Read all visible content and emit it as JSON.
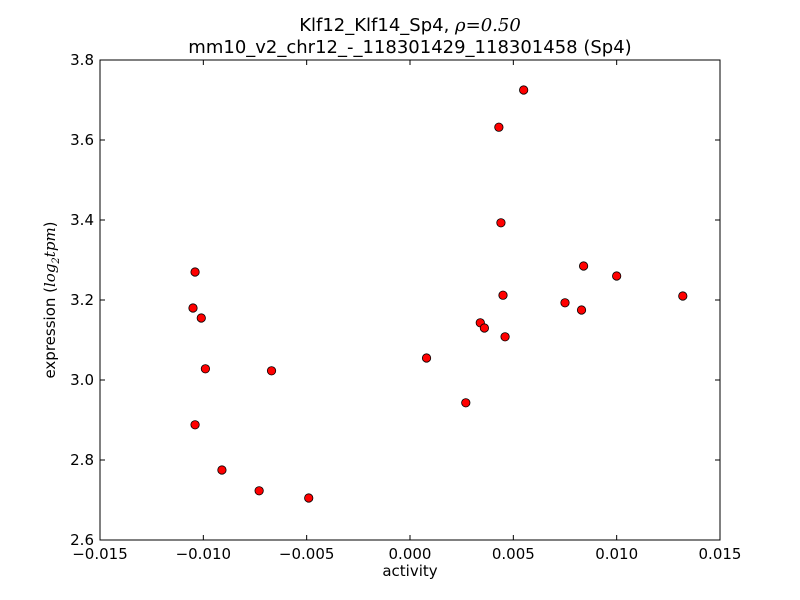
{
  "chart_data": {
    "type": "scatter",
    "title_line1_prefix": "Klf12_Klf14_Sp4, ",
    "title_line1_rho": "ρ",
    "title_line1_value": "=0.50",
    "title_line2": "mm10_v2_chr12_-_118301429_118301458 (Sp4)",
    "xlabel": "activity",
    "ylabel_prefix": "expression (",
    "ylabel_math": "log",
    "ylabel_sub": "2",
    "ylabel_math2": "tpm",
    "ylabel_suffix": ")",
    "xlim": [
      -0.015,
      0.015
    ],
    "ylim": [
      2.6,
      3.8
    ],
    "xticks": [
      -0.015,
      -0.01,
      -0.005,
      0.0,
      0.005,
      0.01,
      0.015
    ],
    "xtick_labels": [
      "−0.015",
      "−0.010",
      "−0.005",
      "0.000",
      "0.005",
      "0.010",
      "0.015"
    ],
    "yticks": [
      2.6,
      2.8,
      3.0,
      3.2,
      3.4,
      3.6,
      3.8
    ],
    "ytick_labels": [
      "2.6",
      "2.8",
      "3.0",
      "3.2",
      "3.4",
      "3.6",
      "3.8"
    ],
    "marker_color": "#ff0000",
    "marker_edge": "#000000",
    "points": [
      {
        "x": -0.0104,
        "y": 3.27
      },
      {
        "x": -0.0105,
        "y": 3.18
      },
      {
        "x": -0.0101,
        "y": 3.155
      },
      {
        "x": -0.0099,
        "y": 3.028
      },
      {
        "x": -0.0104,
        "y": 2.888
      },
      {
        "x": -0.0091,
        "y": 2.775
      },
      {
        "x": -0.0073,
        "y": 2.723
      },
      {
        "x": -0.0067,
        "y": 3.023
      },
      {
        "x": -0.0049,
        "y": 2.705
      },
      {
        "x": 0.0008,
        "y": 3.055
      },
      {
        "x": 0.0027,
        "y": 2.943
      },
      {
        "x": 0.0034,
        "y": 3.143
      },
      {
        "x": 0.0036,
        "y": 3.13
      },
      {
        "x": 0.0043,
        "y": 3.632
      },
      {
        "x": 0.0044,
        "y": 3.393
      },
      {
        "x": 0.0045,
        "y": 3.212
      },
      {
        "x": 0.0046,
        "y": 3.108
      },
      {
        "x": 0.0055,
        "y": 3.725
      },
      {
        "x": 0.0075,
        "y": 3.193
      },
      {
        "x": 0.0083,
        "y": 3.175
      },
      {
        "x": 0.0084,
        "y": 3.285
      },
      {
        "x": 0.01,
        "y": 3.26
      },
      {
        "x": 0.0132,
        "y": 3.21
      }
    ]
  }
}
